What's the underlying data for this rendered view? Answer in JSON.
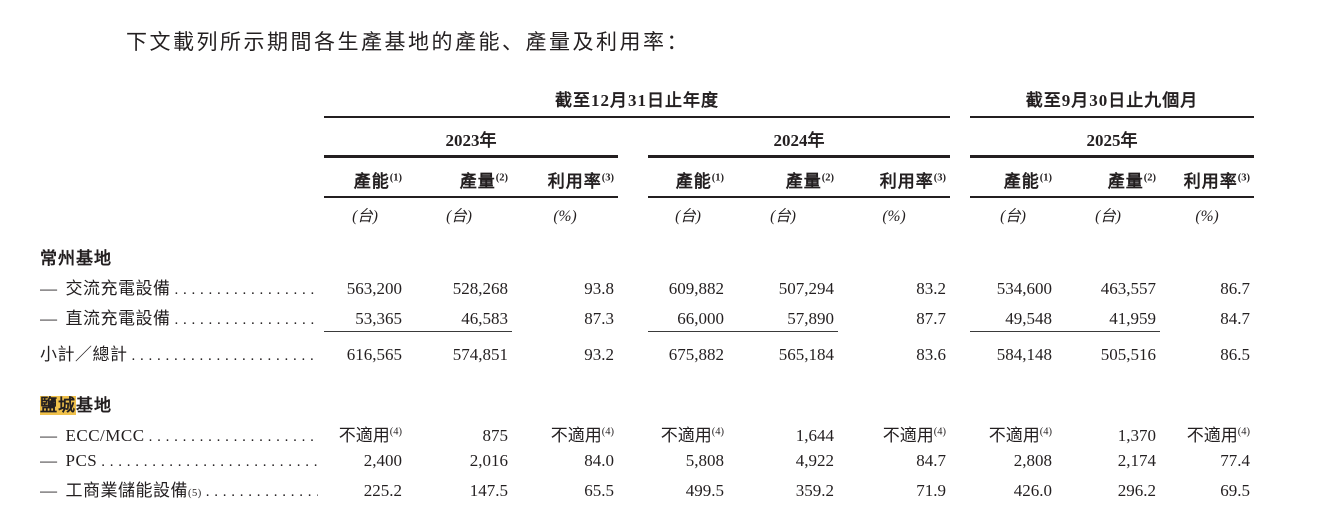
{
  "page": {
    "title": "下文載列所示期間各生產基地的產能、產量及利用率："
  },
  "colors": {
    "text": "#231f20",
    "highlight": "#f0c14b"
  },
  "table": {
    "period_groups": [
      {
        "label": "截至12月31日止年度",
        "years": [
          "2023年",
          "2024年"
        ]
      },
      {
        "label": "截至9月30日止九個月",
        "years": [
          "2025年"
        ]
      }
    ],
    "column_headers": [
      {
        "text": "產能",
        "sup": "(1)",
        "unit": "(台)"
      },
      {
        "text": "產量",
        "sup": "(2)",
        "unit": "(台)"
      },
      {
        "text": "利用率",
        "sup": "(3)",
        "unit": "(%)"
      }
    ],
    "rows": [
      {
        "type": "section",
        "label": "常州基地"
      },
      {
        "type": "data",
        "dash": "—",
        "label": "交流充電設備",
        "cells": [
          "563,200",
          "528,268",
          "93.8",
          "609,882",
          "507,294",
          "83.2",
          "534,600",
          "463,557",
          "86.7"
        ]
      },
      {
        "type": "data",
        "dash": "—",
        "label": "直流充電設備",
        "rule_below": true,
        "cells": [
          "53,365",
          "46,583",
          "87.3",
          "66,000",
          "57,890",
          "87.7",
          "49,548",
          "41,959",
          "84.7"
        ]
      },
      {
        "type": "data",
        "label": "小計／總計",
        "subtotal": true,
        "cells": [
          "616,565",
          "574,851",
          "93.2",
          "675,882",
          "565,184",
          "83.6",
          "584,148",
          "505,516",
          "86.5"
        ]
      },
      {
        "type": "spacer"
      },
      {
        "type": "section",
        "label": "鹽城基地",
        "highlight": "鹽城",
        "rest": "基地"
      },
      {
        "type": "data",
        "dash": "—",
        "label": "ECC/MCC",
        "cells": [
          {
            "v": "不適用",
            "sup": "(4)"
          },
          "875",
          {
            "v": "不適用",
            "sup": "(4)"
          },
          {
            "v": "不適用",
            "sup": "(4)"
          },
          "1,644",
          {
            "v": "不適用",
            "sup": "(4)"
          },
          {
            "v": "不適用",
            "sup": "(4)"
          },
          "1,370",
          {
            "v": "不適用",
            "sup": "(4)"
          }
        ]
      },
      {
        "type": "data",
        "dash": "—",
        "label": "PCS",
        "cells": [
          "2,400",
          "2,016",
          "84.0",
          "5,808",
          "4,922",
          "84.7",
          "2,808",
          "2,174",
          "77.4"
        ]
      },
      {
        "type": "data",
        "dash": "—",
        "label": "工商業儲能設備",
        "label_sup": "(5)",
        "cells": [
          "225.2",
          "147.5",
          "65.5",
          "499.5",
          "359.2",
          "71.9",
          "426.0",
          "296.2",
          "69.5"
        ]
      }
    ]
  }
}
